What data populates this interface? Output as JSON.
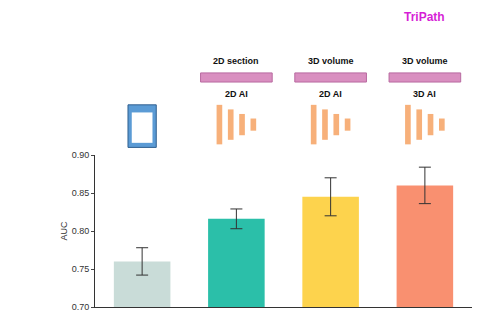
{
  "chart_data": {
    "type": "bar",
    "categories": [
      null,
      null,
      null,
      null
    ],
    "values": [
      0.76,
      0.816,
      0.845,
      0.86
    ],
    "errors": [
      0.018,
      0.013,
      0.025,
      0.024
    ],
    "colors": [
      "#c9dcd8",
      "#2bbfa9",
      "#fdd34d",
      "#f99070"
    ],
    "bar_annotations": [
      [],
      [
        "2D section",
        "2D AI"
      ],
      [
        "3D volume",
        "2D AI"
      ],
      [
        "TriPath",
        "3D volume",
        "3D AI"
      ]
    ],
    "y_label": "AUC",
    "ylim": [
      0.7,
      0.9
    ],
    "yticks": [
      {
        "value": 0.7,
        "label": "0.70"
      },
      {
        "value": 0.75,
        "label": "0.75"
      },
      {
        "value": 0.8,
        "label": "0.80"
      },
      {
        "value": 0.85,
        "label": "0.85"
      },
      {
        "value": 0.9,
        "label": "0.90"
      }
    ],
    "grid": false,
    "tick_labels": "y"
  }
}
